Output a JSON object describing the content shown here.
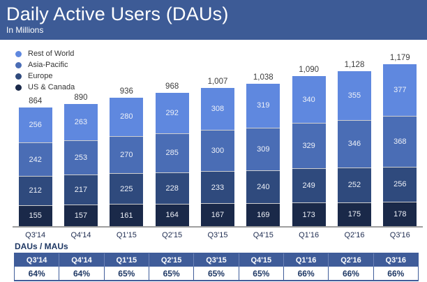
{
  "header": {
    "title": "Daily Active Users (DAUs)",
    "subtitle": "In Millions"
  },
  "colors": {
    "header_bg": "#3d5b96",
    "baseline": "#9e9e9e",
    "total_label": "#3c3c3c",
    "axis_label": "#1e2c50",
    "table_accent": "#3f5c99"
  },
  "chart_data": {
    "type": "bar",
    "stacked": true,
    "title": "Daily Active Users (DAUs)",
    "subtitle": "In Millions",
    "xlabel": "",
    "ylabel": "",
    "grid": false,
    "legend_position": "top-left",
    "categories": [
      "Q3'14",
      "Q4'14",
      "Q1'15",
      "Q2'15",
      "Q3'15",
      "Q4'15",
      "Q1'16",
      "Q2'16",
      "Q3'16"
    ],
    "series": [
      {
        "name": "Rest of World",
        "color": "#5f88df",
        "values": [
          256,
          263,
          280,
          292,
          308,
          319,
          340,
          355,
          377
        ]
      },
      {
        "name": "Asia-Pacific",
        "color": "#4a6db5",
        "values": [
          242,
          253,
          270,
          285,
          300,
          309,
          329,
          346,
          368
        ]
      },
      {
        "name": "Europe",
        "color": "#2f4a7d",
        "values": [
          212,
          217,
          225,
          228,
          233,
          240,
          249,
          252,
          256
        ]
      },
      {
        "name": "US & Canada",
        "color": "#1a2949",
        "values": [
          155,
          157,
          161,
          164,
          167,
          169,
          173,
          175,
          178
        ]
      }
    ],
    "totals": [
      "864",
      "890",
      "936",
      "968",
      "1,007",
      "1,038",
      "1,090",
      "1,128",
      "1,179"
    ]
  },
  "table": {
    "label": "DAUs / MAUs",
    "columns": [
      "Q3'14",
      "Q4'14",
      "Q1'15",
      "Q2'15",
      "Q3'15",
      "Q4'15",
      "Q1'16",
      "Q2'16",
      "Q3'16"
    ],
    "values": [
      "64%",
      "64%",
      "65%",
      "65%",
      "65%",
      "65%",
      "66%",
      "66%",
      "66%"
    ]
  }
}
